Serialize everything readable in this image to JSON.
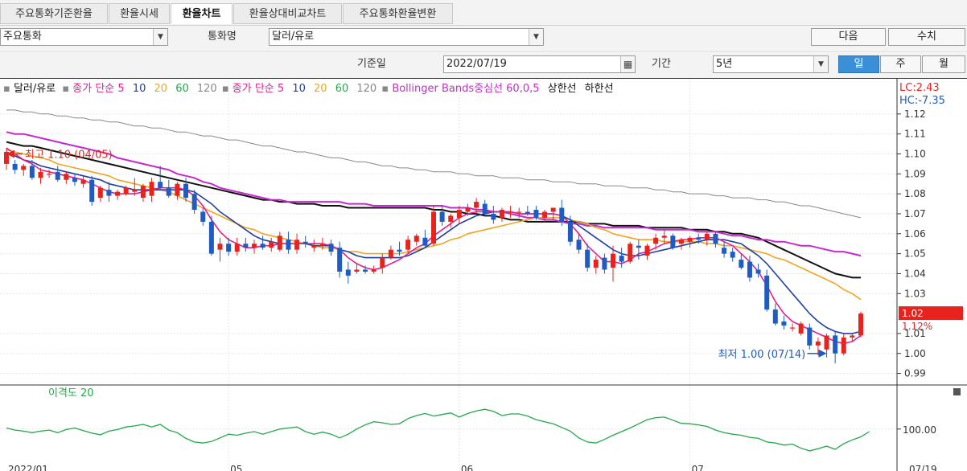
{
  "tabs": [
    "주요통화기준환율",
    "환율시세",
    "환율차트",
    "환율상대비교차트",
    "주요통화환율변환"
  ],
  "controls": {
    "currency_group": "주요통화",
    "currency_label": "통화명",
    "currency_value": "달러/유로",
    "next_btn": "다음",
    "value_btn": "수치",
    "base_date_label": "기준일",
    "base_date": "2022/07/19",
    "period_label": "기간",
    "period_value": "5년",
    "period_tabs": [
      "일",
      "주",
      "월"
    ]
  },
  "legend": {
    "pair": "달러/유로",
    "ma_label_1": "종가 단순 5",
    "ma_label_2": "종가 단순 5",
    "ma_periods": [
      "10",
      "20",
      "60",
      "120"
    ],
    "bb": "Bollinger Bands중심선 60,0,5",
    "upper": "상한선",
    "lower": "하한선"
  },
  "colors": {
    "up": "#e8231e",
    "down": "#1f5bc4",
    "ma5": "#e0208e",
    "ma10": "#1f3fa0",
    "ma20": "#f0a520",
    "ma60": "#111111",
    "ma120": "#888888",
    "bb_mid": "#c529cf",
    "osc": "#22a84a",
    "price_box": "#e8231e"
  },
  "chart_data": {
    "type": "candlestick",
    "ylim": [
      0.985,
      1.13
    ],
    "yticks": [
      {
        "v": 1.12,
        "t": "1.12"
      },
      {
        "v": 1.11,
        "t": "1.11"
      },
      {
        "v": 1.1,
        "t": "1.10"
      },
      {
        "v": 1.09,
        "t": "1.09"
      },
      {
        "v": 1.08,
        "t": "1.08"
      },
      {
        "v": 1.07,
        "t": "1.07"
      },
      {
        "v": 1.06,
        "t": "1.06"
      },
      {
        "v": 1.05,
        "t": "1.05"
      },
      {
        "v": 1.04,
        "t": "1.04"
      },
      {
        "v": 1.03,
        "t": "1.03"
      },
      {
        "v": 1.01,
        "t": "1.01"
      },
      {
        "v": 1.0,
        "t": "1.00"
      },
      {
        "v": 0.99,
        "t": "0.99"
      }
    ],
    "corner_lc": "LC:2.43",
    "corner_hc": "HC:-7.35",
    "last_price": "1.02",
    "last_change": "1.12%",
    "high_label": "최고 1.10 (04/05)",
    "low_label": "최저 1.00 (07/14)",
    "ohlc": [
      [
        1.095,
        1.103,
        1.092,
        1.101
      ],
      [
        1.095,
        1.097,
        1.09,
        1.092
      ],
      [
        1.092,
        1.095,
        1.089,
        1.094
      ],
      [
        1.094,
        1.097,
        1.087,
        1.088
      ],
      [
        1.088,
        1.093,
        1.085,
        1.091
      ],
      [
        1.09,
        1.092,
        1.088,
        1.09
      ],
      [
        1.091,
        1.094,
        1.086,
        1.087
      ],
      [
        1.087,
        1.091,
        1.085,
        1.09
      ],
      [
        1.088,
        1.09,
        1.084,
        1.086
      ],
      [
        1.085,
        1.089,
        1.083,
        1.087
      ],
      [
        1.087,
        1.089,
        1.074,
        1.076
      ],
      [
        1.078,
        1.084,
        1.076,
        1.083
      ],
      [
        1.082,
        1.086,
        1.076,
        1.079
      ],
      [
        1.079,
        1.082,
        1.077,
        1.081
      ],
      [
        1.08,
        1.084,
        1.079,
        1.083
      ],
      [
        1.081,
        1.088,
        1.079,
        1.082
      ],
      [
        1.078,
        1.085,
        1.076,
        1.084
      ],
      [
        1.079,
        1.088,
        1.076,
        1.086
      ],
      [
        1.086,
        1.094,
        1.082,
        1.083
      ],
      [
        1.083,
        1.087,
        1.078,
        1.079
      ],
      [
        1.079,
        1.086,
        1.077,
        1.085
      ],
      [
        1.085,
        1.088,
        1.076,
        1.078
      ],
      [
        1.08,
        1.082,
        1.07,
        1.072
      ],
      [
        1.071,
        1.073,
        1.064,
        1.066
      ],
      [
        1.066,
        1.069,
        1.049,
        1.05
      ],
      [
        1.052,
        1.058,
        1.046,
        1.055
      ],
      [
        1.055,
        1.058,
        1.049,
        1.051
      ],
      [
        1.051,
        1.058,
        1.049,
        1.055
      ],
      [
        1.055,
        1.058,
        1.051,
        1.053
      ],
      [
        1.053,
        1.057,
        1.05,
        1.055
      ],
      [
        1.055,
        1.059,
        1.052,
        1.053
      ],
      [
        1.053,
        1.058,
        1.051,
        1.056
      ],
      [
        1.052,
        1.061,
        1.051,
        1.059
      ],
      [
        1.057,
        1.061,
        1.05,
        1.052
      ],
      [
        1.052,
        1.06,
        1.05,
        1.057
      ],
      [
        1.056,
        1.059,
        1.053,
        1.055
      ],
      [
        1.053,
        1.057,
        1.051,
        1.054
      ],
      [
        1.054,
        1.058,
        1.052,
        1.055
      ],
      [
        1.055,
        1.057,
        1.049,
        1.051
      ],
      [
        1.053,
        1.056,
        1.038,
        1.041
      ],
      [
        1.042,
        1.046,
        1.035,
        1.039
      ],
      [
        1.041,
        1.045,
        1.04,
        1.042
      ],
      [
        1.042,
        1.044,
        1.04,
        1.041
      ],
      [
        1.041,
        1.044,
        1.04,
        1.042
      ],
      [
        1.043,
        1.05,
        1.04,
        1.048
      ],
      [
        1.048,
        1.054,
        1.047,
        1.052
      ],
      [
        1.052,
        1.056,
        1.049,
        1.051
      ],
      [
        1.052,
        1.059,
        1.05,
        1.057
      ],
      [
        1.056,
        1.06,
        1.054,
        1.059
      ],
      [
        1.058,
        1.062,
        1.053,
        1.054
      ],
      [
        1.055,
        1.074,
        1.054,
        1.071
      ],
      [
        1.071,
        1.074,
        1.064,
        1.066
      ],
      [
        1.066,
        1.07,
        1.063,
        1.069
      ],
      [
        1.068,
        1.074,
        1.065,
        1.072
      ],
      [
        1.071,
        1.075,
        1.069,
        1.073
      ],
      [
        1.073,
        1.078,
        1.07,
        1.076
      ],
      [
        1.075,
        1.077,
        1.069,
        1.07
      ],
      [
        1.07,
        1.074,
        1.065,
        1.067
      ],
      [
        1.068,
        1.073,
        1.066,
        1.072
      ],
      [
        1.071,
        1.074,
        1.068,
        1.071
      ],
      [
        1.071,
        1.073,
        1.068,
        1.071
      ],
      [
        1.071,
        1.074,
        1.069,
        1.07
      ],
      [
        1.072,
        1.074,
        1.067,
        1.068
      ],
      [
        1.068,
        1.072,
        1.066,
        1.071
      ],
      [
        1.071,
        1.073,
        1.067,
        1.073
      ],
      [
        1.073,
        1.077,
        1.064,
        1.066
      ],
      [
        1.066,
        1.069,
        1.054,
        1.056
      ],
      [
        1.057,
        1.06,
        1.05,
        1.052
      ],
      [
        1.052,
        1.055,
        1.041,
        1.043
      ],
      [
        1.043,
        1.049,
        1.04,
        1.047
      ],
      [
        1.048,
        1.05,
        1.04,
        1.042
      ],
      [
        1.043,
        1.054,
        1.036,
        1.05
      ],
      [
        1.049,
        1.053,
        1.043,
        1.046
      ],
      [
        1.046,
        1.056,
        1.045,
        1.055
      ],
      [
        1.054,
        1.057,
        1.047,
        1.053
      ],
      [
        1.049,
        1.055,
        1.047,
        1.054
      ],
      [
        1.055,
        1.06,
        1.052,
        1.058
      ],
      [
        1.058,
        1.062,
        1.055,
        1.059
      ],
      [
        1.059,
        1.06,
        1.052,
        1.053
      ],
      [
        1.055,
        1.058,
        1.052,
        1.057
      ],
      [
        1.056,
        1.059,
        1.053,
        1.058
      ],
      [
        1.058,
        1.06,
        1.055,
        1.057
      ],
      [
        1.057,
        1.061,
        1.054,
        1.06
      ],
      [
        1.06,
        1.061,
        1.053,
        1.055
      ],
      [
        1.053,
        1.056,
        1.048,
        1.05
      ],
      [
        1.051,
        1.053,
        1.046,
        1.048
      ],
      [
        1.047,
        1.05,
        1.042,
        1.043
      ],
      [
        1.046,
        1.049,
        1.036,
        1.038
      ],
      [
        1.042,
        1.045,
        1.038,
        1.04
      ],
      [
        1.039,
        1.042,
        1.021,
        1.022
      ],
      [
        1.022,
        1.025,
        1.014,
        1.015
      ],
      [
        1.016,
        1.019,
        1.012,
        1.014
      ],
      [
        1.013,
        1.015,
        1.011,
        1.013
      ],
      [
        1.01,
        1.016,
        1.009,
        1.015
      ],
      [
        1.013,
        1.015,
        1.002,
        1.004
      ],
      [
        1.004,
        1.008,
        0.999,
        1.006
      ],
      [
        1.002,
        1.01,
        0.998,
        1.009
      ],
      [
        1.009,
        1.011,
        0.995,
        1.0
      ],
      [
        1.0,
        1.01,
        0.999,
        1.008
      ],
      [
        1.008,
        1.01,
        1.006,
        1.009
      ],
      [
        1.009,
        1.021,
        1.008,
        1.02
      ]
    ],
    "ma5": [
      1.103,
      1.1,
      1.097,
      1.095,
      1.092,
      1.091,
      1.09,
      1.089,
      1.088,
      1.087,
      1.085,
      1.083,
      1.081,
      1.08,
      1.08,
      1.08,
      1.081,
      1.082,
      1.083,
      1.083,
      1.083,
      1.082,
      1.079,
      1.074,
      1.067,
      1.061,
      1.057,
      1.055,
      1.053,
      1.053,
      1.054,
      1.054,
      1.055,
      1.055,
      1.055,
      1.055,
      1.055,
      1.055,
      1.054,
      1.052,
      1.048,
      1.045,
      1.043,
      1.042,
      1.043,
      1.045,
      1.047,
      1.05,
      1.053,
      1.055,
      1.059,
      1.062,
      1.065,
      1.068,
      1.07,
      1.071,
      1.071,
      1.071,
      1.071,
      1.071,
      1.07,
      1.07,
      1.07,
      1.07,
      1.07,
      1.069,
      1.065,
      1.06,
      1.054,
      1.05,
      1.046,
      1.046,
      1.045,
      1.047,
      1.05,
      1.051,
      1.053,
      1.055,
      1.056,
      1.057,
      1.057,
      1.058,
      1.058,
      1.058,
      1.056,
      1.054,
      1.05,
      1.046,
      1.041,
      1.034,
      1.026,
      1.02,
      1.016,
      1.014,
      1.012,
      1.01,
      1.008,
      1.006,
      1.005,
      1.006,
      1.009
    ],
    "ma10": [
      1.101,
      1.099,
      1.097,
      1.096,
      1.094,
      1.093,
      1.092,
      1.091,
      1.09,
      1.089,
      1.088,
      1.087,
      1.085,
      1.084,
      1.083,
      1.082,
      1.082,
      1.082,
      1.082,
      1.082,
      1.082,
      1.082,
      1.081,
      1.078,
      1.075,
      1.071,
      1.068,
      1.065,
      1.062,
      1.059,
      1.057,
      1.056,
      1.055,
      1.055,
      1.055,
      1.055,
      1.054,
      1.054,
      1.054,
      1.052,
      1.051,
      1.049,
      1.048,
      1.048,
      1.048,
      1.048,
      1.048,
      1.049,
      1.051,
      1.053,
      1.056,
      1.059,
      1.062,
      1.065,
      1.067,
      1.069,
      1.07,
      1.071,
      1.071,
      1.071,
      1.07,
      1.07,
      1.07,
      1.07,
      1.07,
      1.069,
      1.067,
      1.064,
      1.061,
      1.058,
      1.055,
      1.052,
      1.05,
      1.049,
      1.049,
      1.05,
      1.051,
      1.052,
      1.053,
      1.054,
      1.055,
      1.056,
      1.057,
      1.057,
      1.057,
      1.056,
      1.055,
      1.052,
      1.049,
      1.045,
      1.04,
      1.035,
      1.03,
      1.025,
      1.02,
      1.016,
      1.013,
      1.011,
      1.01,
      1.01,
      1.011
    ],
    "ma20": [
      1.102,
      1.101,
      1.1,
      1.099,
      1.098,
      1.097,
      1.095,
      1.094,
      1.093,
      1.092,
      1.091,
      1.09,
      1.089,
      1.087,
      1.086,
      1.085,
      1.084,
      1.083,
      1.082,
      1.081,
      1.079,
      1.077,
      1.075,
      1.073,
      1.071,
      1.069,
      1.067,
      1.065,
      1.063,
      1.062,
      1.06,
      1.059,
      1.058,
      1.057,
      1.056,
      1.055,
      1.054,
      1.053,
      1.053,
      1.052,
      1.051,
      1.051,
      1.05,
      1.05,
      1.05,
      1.05,
      1.05,
      1.051,
      1.052,
      1.053,
      1.054,
      1.055,
      1.057,
      1.058,
      1.06,
      1.061,
      1.062,
      1.063,
      1.064,
      1.065,
      1.066,
      1.067,
      1.068,
      1.068,
      1.068,
      1.068,
      1.067,
      1.066,
      1.065,
      1.063,
      1.062,
      1.06,
      1.059,
      1.058,
      1.057,
      1.057,
      1.057,
      1.056,
      1.056,
      1.056,
      1.056,
      1.056,
      1.055,
      1.055,
      1.054,
      1.054,
      1.053,
      1.052,
      1.051,
      1.05,
      1.048,
      1.047,
      1.045,
      1.043,
      1.041,
      1.039,
      1.037,
      1.035,
      1.032,
      1.03,
      1.027
    ],
    "ma60": [
      1.106,
      1.105,
      1.104,
      1.104,
      1.103,
      1.102,
      1.101,
      1.1,
      1.099,
      1.098,
      1.097,
      1.096,
      1.095,
      1.094,
      1.093,
      1.092,
      1.091,
      1.09,
      1.089,
      1.088,
      1.087,
      1.086,
      1.085,
      1.084,
      1.083,
      1.082,
      1.081,
      1.08,
      1.079,
      1.078,
      1.077,
      1.077,
      1.076,
      1.076,
      1.075,
      1.075,
      1.075,
      1.074,
      1.074,
      1.074,
      1.073,
      1.073,
      1.073,
      1.073,
      1.073,
      1.073,
      1.073,
      1.073,
      1.073,
      1.073,
      1.072,
      1.072,
      1.071,
      1.071,
      1.07,
      1.07,
      1.069,
      1.069,
      1.068,
      1.067,
      1.067,
      1.066,
      1.066,
      1.066,
      1.066,
      1.066,
      1.066,
      1.066,
      1.065,
      1.065,
      1.065,
      1.064,
      1.064,
      1.064,
      1.064,
      1.063,
      1.063,
      1.063,
      1.063,
      1.063,
      1.062,
      1.062,
      1.062,
      1.061,
      1.061,
      1.06,
      1.06,
      1.059,
      1.058,
      1.056,
      1.054,
      1.052,
      1.05,
      1.048,
      1.046,
      1.044,
      1.042,
      1.04,
      1.039,
      1.038,
      1.038
    ],
    "ma120": [
      1.122,
      1.122,
      1.121,
      1.121,
      1.12,
      1.12,
      1.119,
      1.119,
      1.118,
      1.118,
      1.117,
      1.117,
      1.116,
      1.116,
      1.115,
      1.114,
      1.114,
      1.113,
      1.113,
      1.112,
      1.111,
      1.111,
      1.11,
      1.109,
      1.109,
      1.108,
      1.107,
      1.107,
      1.106,
      1.105,
      1.104,
      1.104,
      1.103,
      1.102,
      1.101,
      1.101,
      1.1,
      1.099,
      1.098,
      1.098,
      1.097,
      1.096,
      1.096,
      1.095,
      1.094,
      1.094,
      1.093,
      1.093,
      1.092,
      1.092,
      1.091,
      1.091,
      1.091,
      1.09,
      1.09,
      1.089,
      1.089,
      1.089,
      1.088,
      1.088,
      1.088,
      1.087,
      1.087,
      1.087,
      1.086,
      1.086,
      1.086,
      1.085,
      1.085,
      1.085,
      1.084,
      1.084,
      1.084,
      1.083,
      1.083,
      1.083,
      1.082,
      1.082,
      1.081,
      1.081,
      1.08,
      1.08,
      1.08,
      1.079,
      1.079,
      1.078,
      1.078,
      1.078,
      1.077,
      1.077,
      1.076,
      1.076,
      1.075,
      1.074,
      1.074,
      1.073,
      1.072,
      1.071,
      1.07,
      1.069,
      1.068
    ],
    "bb_mid": [
      1.111,
      1.11,
      1.11,
      1.109,
      1.108,
      1.107,
      1.106,
      1.105,
      1.104,
      1.103,
      1.102,
      1.101,
      1.1,
      1.098,
      1.097,
      1.096,
      1.095,
      1.094,
      1.093,
      1.092,
      1.09,
      1.089,
      1.088,
      1.086,
      1.085,
      1.083,
      1.082,
      1.081,
      1.08,
      1.079,
      1.078,
      1.077,
      1.077,
      1.076,
      1.076,
      1.076,
      1.076,
      1.076,
      1.076,
      1.076,
      1.075,
      1.075,
      1.075,
      1.074,
      1.074,
      1.074,
      1.074,
      1.074,
      1.074,
      1.074,
      1.074,
      1.074,
      1.073,
      1.073,
      1.073,
      1.072,
      1.072,
      1.071,
      1.071,
      1.07,
      1.069,
      1.068,
      1.068,
      1.067,
      1.067,
      1.066,
      1.065,
      1.065,
      1.064,
      1.064,
      1.063,
      1.063,
      1.063,
      1.063,
      1.063,
      1.063,
      1.062,
      1.062,
      1.062,
      1.062,
      1.062,
      1.061,
      1.061,
      1.061,
      1.06,
      1.059,
      1.059,
      1.058,
      1.057,
      1.057,
      1.056,
      1.056,
      1.055,
      1.054,
      1.054,
      1.053,
      1.052,
      1.051,
      1.051,
      1.05,
      1.049
    ],
    "osc_label": "이격도 20",
    "osc_tick": "100.00",
    "osc_ylim": [
      93,
      106
    ],
    "osc": [
      100.2,
      99.8,
      99.6,
      99.3,
      99.6,
      99.8,
      99.3,
      99.9,
      100.2,
      99.7,
      99.2,
      98.9,
      99.6,
      99.9,
      100.4,
      100.6,
      100.9,
      100.4,
      100.9,
      99.8,
      99.3,
      98.2,
      97.5,
      97.3,
      97.6,
      98.3,
      99.0,
      98.8,
      99.2,
      99.5,
      99.0,
      99.5,
      100.0,
      100.2,
      100.4,
      99.5,
      99.0,
      99.4,
      99.0,
      98.3,
      99.0,
      100.0,
      100.8,
      101.4,
      101.2,
      100.9,
      101.0,
      102.0,
      102.6,
      103.0,
      102.5,
      102.8,
      103.1,
      102.3,
      103.0,
      103.5,
      103.8,
      103.4,
      102.6,
      102.9,
      102.9,
      102.5,
      101.8,
      101.4,
      101.0,
      100.3,
      99.6,
      98.3,
      97.5,
      97.3,
      98.0,
      98.8,
      99.5,
      100.2,
      101.0,
      101.8,
      102.2,
      102.3,
      101.7,
      101.1,
      101.0,
      100.8,
      100.5,
      99.8,
      99.3,
      99.0,
      98.8,
      98.4,
      98.2,
      97.5,
      97.3,
      96.9,
      97.1,
      96.3,
      95.8,
      96.2,
      96.7,
      96.1,
      97.2,
      97.9,
      98.5,
      99.5
    ],
    "x_labels": [
      "2022/01",
      "05",
      "06",
      "07",
      "07/19"
    ]
  }
}
